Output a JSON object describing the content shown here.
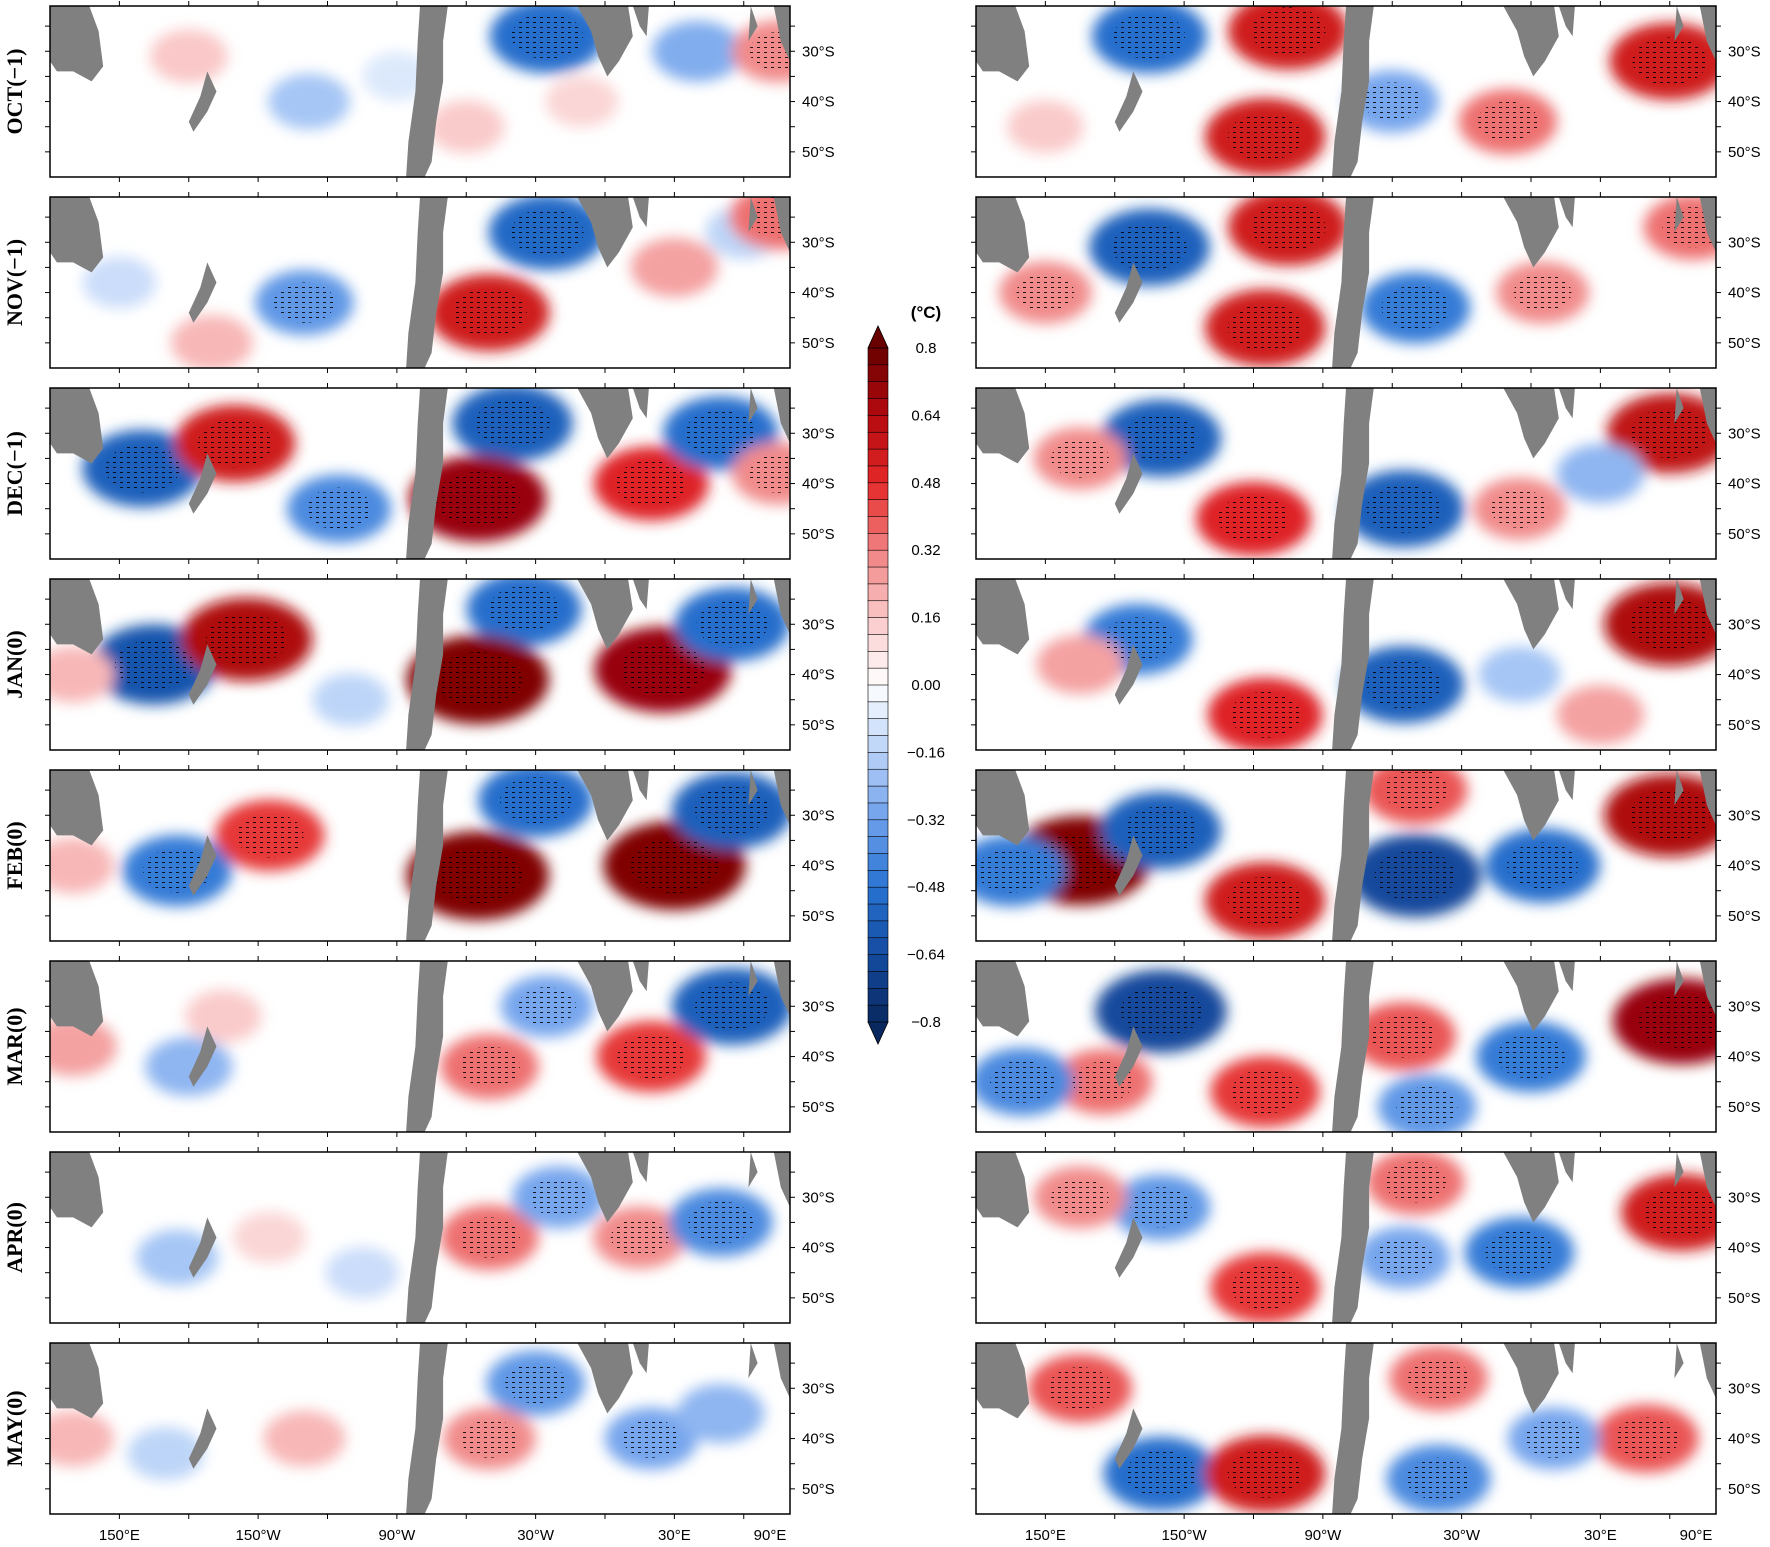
{
  "chart_data": {
    "type": "heatmap",
    "title": "",
    "rows": [
      "OCT(−1)",
      "NOV(−1)",
      "DEC(−1)",
      "JAN(0)",
      "FEB(0)",
      "MAR(0)",
      "APR(0)",
      "MAY(0)"
    ],
    "lat_ticks": [
      "30°S",
      "40°S",
      "50°S"
    ],
    "lon_ticks": [
      "150°E",
      "150°W",
      "90°W",
      "30°W",
      "30°E",
      "90°E"
    ],
    "lat_range": [
      -55,
      -21
    ],
    "lon_range": [
      120,
      440
    ],
    "colorbar": {
      "unit": "(°C)",
      "ticks": [
        "0.8",
        "0.64",
        "0.48",
        "0.32",
        "0.16",
        "0.00",
        "−0.16",
        "−0.32",
        "−0.48",
        "−0.64",
        "−0.8"
      ],
      "range": [
        -0.8,
        0.8
      ],
      "step": 0.04
    },
    "land_color": "#808080",
    "stipple_color": "#000000",
    "panels": [
      {
        "column": "left",
        "anomalies": [
          [
            {
              "lon": 180,
              "lat": -31,
              "value": 0.16
            },
            {
              "lon": 232,
              "lat": -40,
              "value": -0.2
            },
            {
              "lon": 270,
              "lat": -35,
              "value": -0.08
            },
            {
              "lon": 335,
              "lat": -27,
              "value": -0.5
            },
            {
              "lon": 300,
              "lat": -45,
              "value": 0.15
            },
            {
              "lon": 400,
              "lat": -30,
              "value": -0.28
            },
            {
              "lon": 350,
              "lat": -40,
              "value": 0.12
            },
            {
              "lon": 435,
              "lat": -30,
              "value": 0.3
            }
          ],
          [
            {
              "lon": 150,
              "lat": -38,
              "value": -0.12
            },
            {
              "lon": 230,
              "lat": -42,
              "value": -0.35
            },
            {
              "lon": 190,
              "lat": -50,
              "value": 0.2
            },
            {
              "lon": 335,
              "lat": -28,
              "value": -0.52
            },
            {
              "lon": 310,
              "lat": -44,
              "value": 0.55
            },
            {
              "lon": 390,
              "lat": -35,
              "value": 0.25
            },
            {
              "lon": 420,
              "lat": -28,
              "value": -0.15
            },
            {
              "lon": 435,
              "lat": -25,
              "value": 0.35
            }
          ],
          [
            {
              "lon": 160,
              "lat": -37,
              "value": -0.55
            },
            {
              "lon": 200,
              "lat": -32,
              "value": 0.55
            },
            {
              "lon": 245,
              "lat": -45,
              "value": -0.4
            },
            {
              "lon": 320,
              "lat": -28,
              "value": -0.55
            },
            {
              "lon": 305,
              "lat": -43,
              "value": 0.7
            },
            {
              "lon": 380,
              "lat": -40,
              "value": 0.5
            },
            {
              "lon": 410,
              "lat": -30,
              "value": -0.5
            },
            {
              "lon": 435,
              "lat": -38,
              "value": 0.3
            }
          ],
          [
            {
              "lon": 165,
              "lat": -38,
              "value": -0.6
            },
            {
              "lon": 205,
              "lat": -33,
              "value": 0.65
            },
            {
              "lon": 250,
              "lat": -45,
              "value": -0.15
            },
            {
              "lon": 325,
              "lat": -27,
              "value": -0.5
            },
            {
              "lon": 305,
              "lat": -41,
              "value": 0.75
            },
            {
              "lon": 385,
              "lat": -39,
              "value": 0.7
            },
            {
              "lon": 415,
              "lat": -30,
              "value": -0.5
            },
            {
              "lon": 130,
              "lat": -40,
              "value": 0.2
            }
          ],
          [
            {
              "lon": 175,
              "lat": -41,
              "value": -0.45
            },
            {
              "lon": 215,
              "lat": -34,
              "value": 0.45
            },
            {
              "lon": 330,
              "lat": -27,
              "value": -0.5
            },
            {
              "lon": 305,
              "lat": -42,
              "value": 0.75
            },
            {
              "lon": 390,
              "lat": -40,
              "value": 0.75
            },
            {
              "lon": 415,
              "lat": -29,
              "value": -0.55
            },
            {
              "lon": 130,
              "lat": -40,
              "value": 0.2
            }
          ],
          [
            {
              "lon": 180,
              "lat": -42,
              "value": -0.25
            },
            {
              "lon": 195,
              "lat": -32,
              "value": 0.15
            },
            {
              "lon": 335,
              "lat": -30,
              "value": -0.3
            },
            {
              "lon": 310,
              "lat": -42,
              "value": 0.35
            },
            {
              "lon": 380,
              "lat": -40,
              "value": 0.45
            },
            {
              "lon": 415,
              "lat": -30,
              "value": -0.55
            },
            {
              "lon": 130,
              "lat": -38,
              "value": 0.25
            }
          ],
          [
            {
              "lon": 175,
              "lat": -42,
              "value": -0.2
            },
            {
              "lon": 215,
              "lat": -38,
              "value": 0.12
            },
            {
              "lon": 255,
              "lat": -45,
              "value": -0.12
            },
            {
              "lon": 310,
              "lat": -38,
              "value": 0.35
            },
            {
              "lon": 340,
              "lat": -30,
              "value": -0.3
            },
            {
              "lon": 375,
              "lat": -38,
              "value": 0.3
            },
            {
              "lon": 410,
              "lat": -35,
              "value": -0.4
            }
          ],
          [
            {
              "lon": 170,
              "lat": -43,
              "value": -0.15
            },
            {
              "lon": 230,
              "lat": -40,
              "value": 0.2
            },
            {
              "lon": 330,
              "lat": -29,
              "value": -0.35
            },
            {
              "lon": 310,
              "lat": -40,
              "value": 0.3
            },
            {
              "lon": 380,
              "lat": -40,
              "value": -0.3
            },
            {
              "lon": 410,
              "lat": -35,
              "value": -0.25
            },
            {
              "lon": 130,
              "lat": -40,
              "value": 0.2
            }
          ]
        ]
      },
      {
        "column": "right",
        "anomalies": [
          [
            {
              "lon": 195,
              "lat": -27,
              "value": -0.5
            },
            {
              "lon": 255,
              "lat": -26,
              "value": 0.55
            },
            {
              "lon": 245,
              "lat": -47,
              "value": 0.55
            },
            {
              "lon": 300,
              "lat": -40,
              "value": -0.3
            },
            {
              "lon": 350,
              "lat": -44,
              "value": 0.35
            },
            {
              "lon": 420,
              "lat": -32,
              "value": 0.55
            },
            {
              "lon": 150,
              "lat": -45,
              "value": 0.15
            }
          ],
          [
            {
              "lon": 195,
              "lat": -31,
              "value": -0.55
            },
            {
              "lon": 255,
              "lat": -27,
              "value": 0.55
            },
            {
              "lon": 245,
              "lat": -47,
              "value": 0.55
            },
            {
              "lon": 310,
              "lat": -43,
              "value": -0.45
            },
            {
              "lon": 365,
              "lat": -40,
              "value": 0.3
            },
            {
              "lon": 150,
              "lat": -40,
              "value": 0.3
            },
            {
              "lon": 430,
              "lat": -27,
              "value": 0.35
            }
          ],
          [
            {
              "lon": 200,
              "lat": -31,
              "value": -0.55
            },
            {
              "lon": 240,
              "lat": -47,
              "value": 0.5
            },
            {
              "lon": 165,
              "lat": -35,
              "value": 0.3
            },
            {
              "lon": 305,
              "lat": -45,
              "value": -0.55
            },
            {
              "lon": 355,
              "lat": -45,
              "value": 0.3
            },
            {
              "lon": 420,
              "lat": -30,
              "value": 0.6
            },
            {
              "lon": 390,
              "lat": -38,
              "value": -0.25
            }
          ],
          [
            {
              "lon": 190,
              "lat": -33,
              "value": -0.45
            },
            {
              "lon": 245,
              "lat": -48,
              "value": 0.5
            },
            {
              "lon": 165,
              "lat": -38,
              "value": 0.25
            },
            {
              "lon": 305,
              "lat": -42,
              "value": -0.55
            },
            {
              "lon": 355,
              "lat": -40,
              "value": -0.2
            },
            {
              "lon": 420,
              "lat": -30,
              "value": 0.65
            },
            {
              "lon": 390,
              "lat": -48,
              "value": 0.25
            }
          ],
          [
            {
              "lon": 165,
              "lat": -39,
              "value": 0.75
            },
            {
              "lon": 200,
              "lat": -33,
              "value": -0.55
            },
            {
              "lon": 135,
              "lat": -41,
              "value": -0.45
            },
            {
              "lon": 245,
              "lat": -47,
              "value": 0.55
            },
            {
              "lon": 310,
              "lat": -42,
              "value": -0.65
            },
            {
              "lon": 365,
              "lat": -40,
              "value": -0.5
            },
            {
              "lon": 420,
              "lat": -30,
              "value": 0.65
            },
            {
              "lon": 310,
              "lat": -25,
              "value": 0.4
            }
          ],
          [
            {
              "lon": 200,
              "lat": -31,
              "value": -0.65
            },
            {
              "lon": 175,
              "lat": -45,
              "value": 0.35
            },
            {
              "lon": 140,
              "lat": -45,
              "value": -0.4
            },
            {
              "lon": 245,
              "lat": -47,
              "value": 0.45
            },
            {
              "lon": 305,
              "lat": -36,
              "value": 0.4
            },
            {
              "lon": 360,
              "lat": -40,
              "value": -0.45
            },
            {
              "lon": 425,
              "lat": -33,
              "value": 0.7
            },
            {
              "lon": 315,
              "lat": -50,
              "value": -0.35
            }
          ],
          [
            {
              "lon": 200,
              "lat": -32,
              "value": -0.35
            },
            {
              "lon": 245,
              "lat": -48,
              "value": 0.45
            },
            {
              "lon": 165,
              "lat": -30,
              "value": 0.3
            },
            {
              "lon": 305,
              "lat": -42,
              "value": -0.3
            },
            {
              "lon": 355,
              "lat": -41,
              "value": -0.45
            },
            {
              "lon": 425,
              "lat": -33,
              "value": 0.55
            },
            {
              "lon": 310,
              "lat": -27,
              "value": 0.35
            }
          ],
          [
            {
              "lon": 200,
              "lat": -47,
              "value": -0.5
            },
            {
              "lon": 245,
              "lat": -47,
              "value": 0.55
            },
            {
              "lon": 165,
              "lat": -30,
              "value": 0.4
            },
            {
              "lon": 320,
              "lat": -28,
              "value": 0.35
            },
            {
              "lon": 410,
              "lat": -40,
              "value": 0.4
            },
            {
              "lon": 320,
              "lat": -48,
              "value": -0.4
            },
            {
              "lon": 370,
              "lat": -40,
              "value": -0.3
            }
          ]
        ]
      }
    ]
  }
}
